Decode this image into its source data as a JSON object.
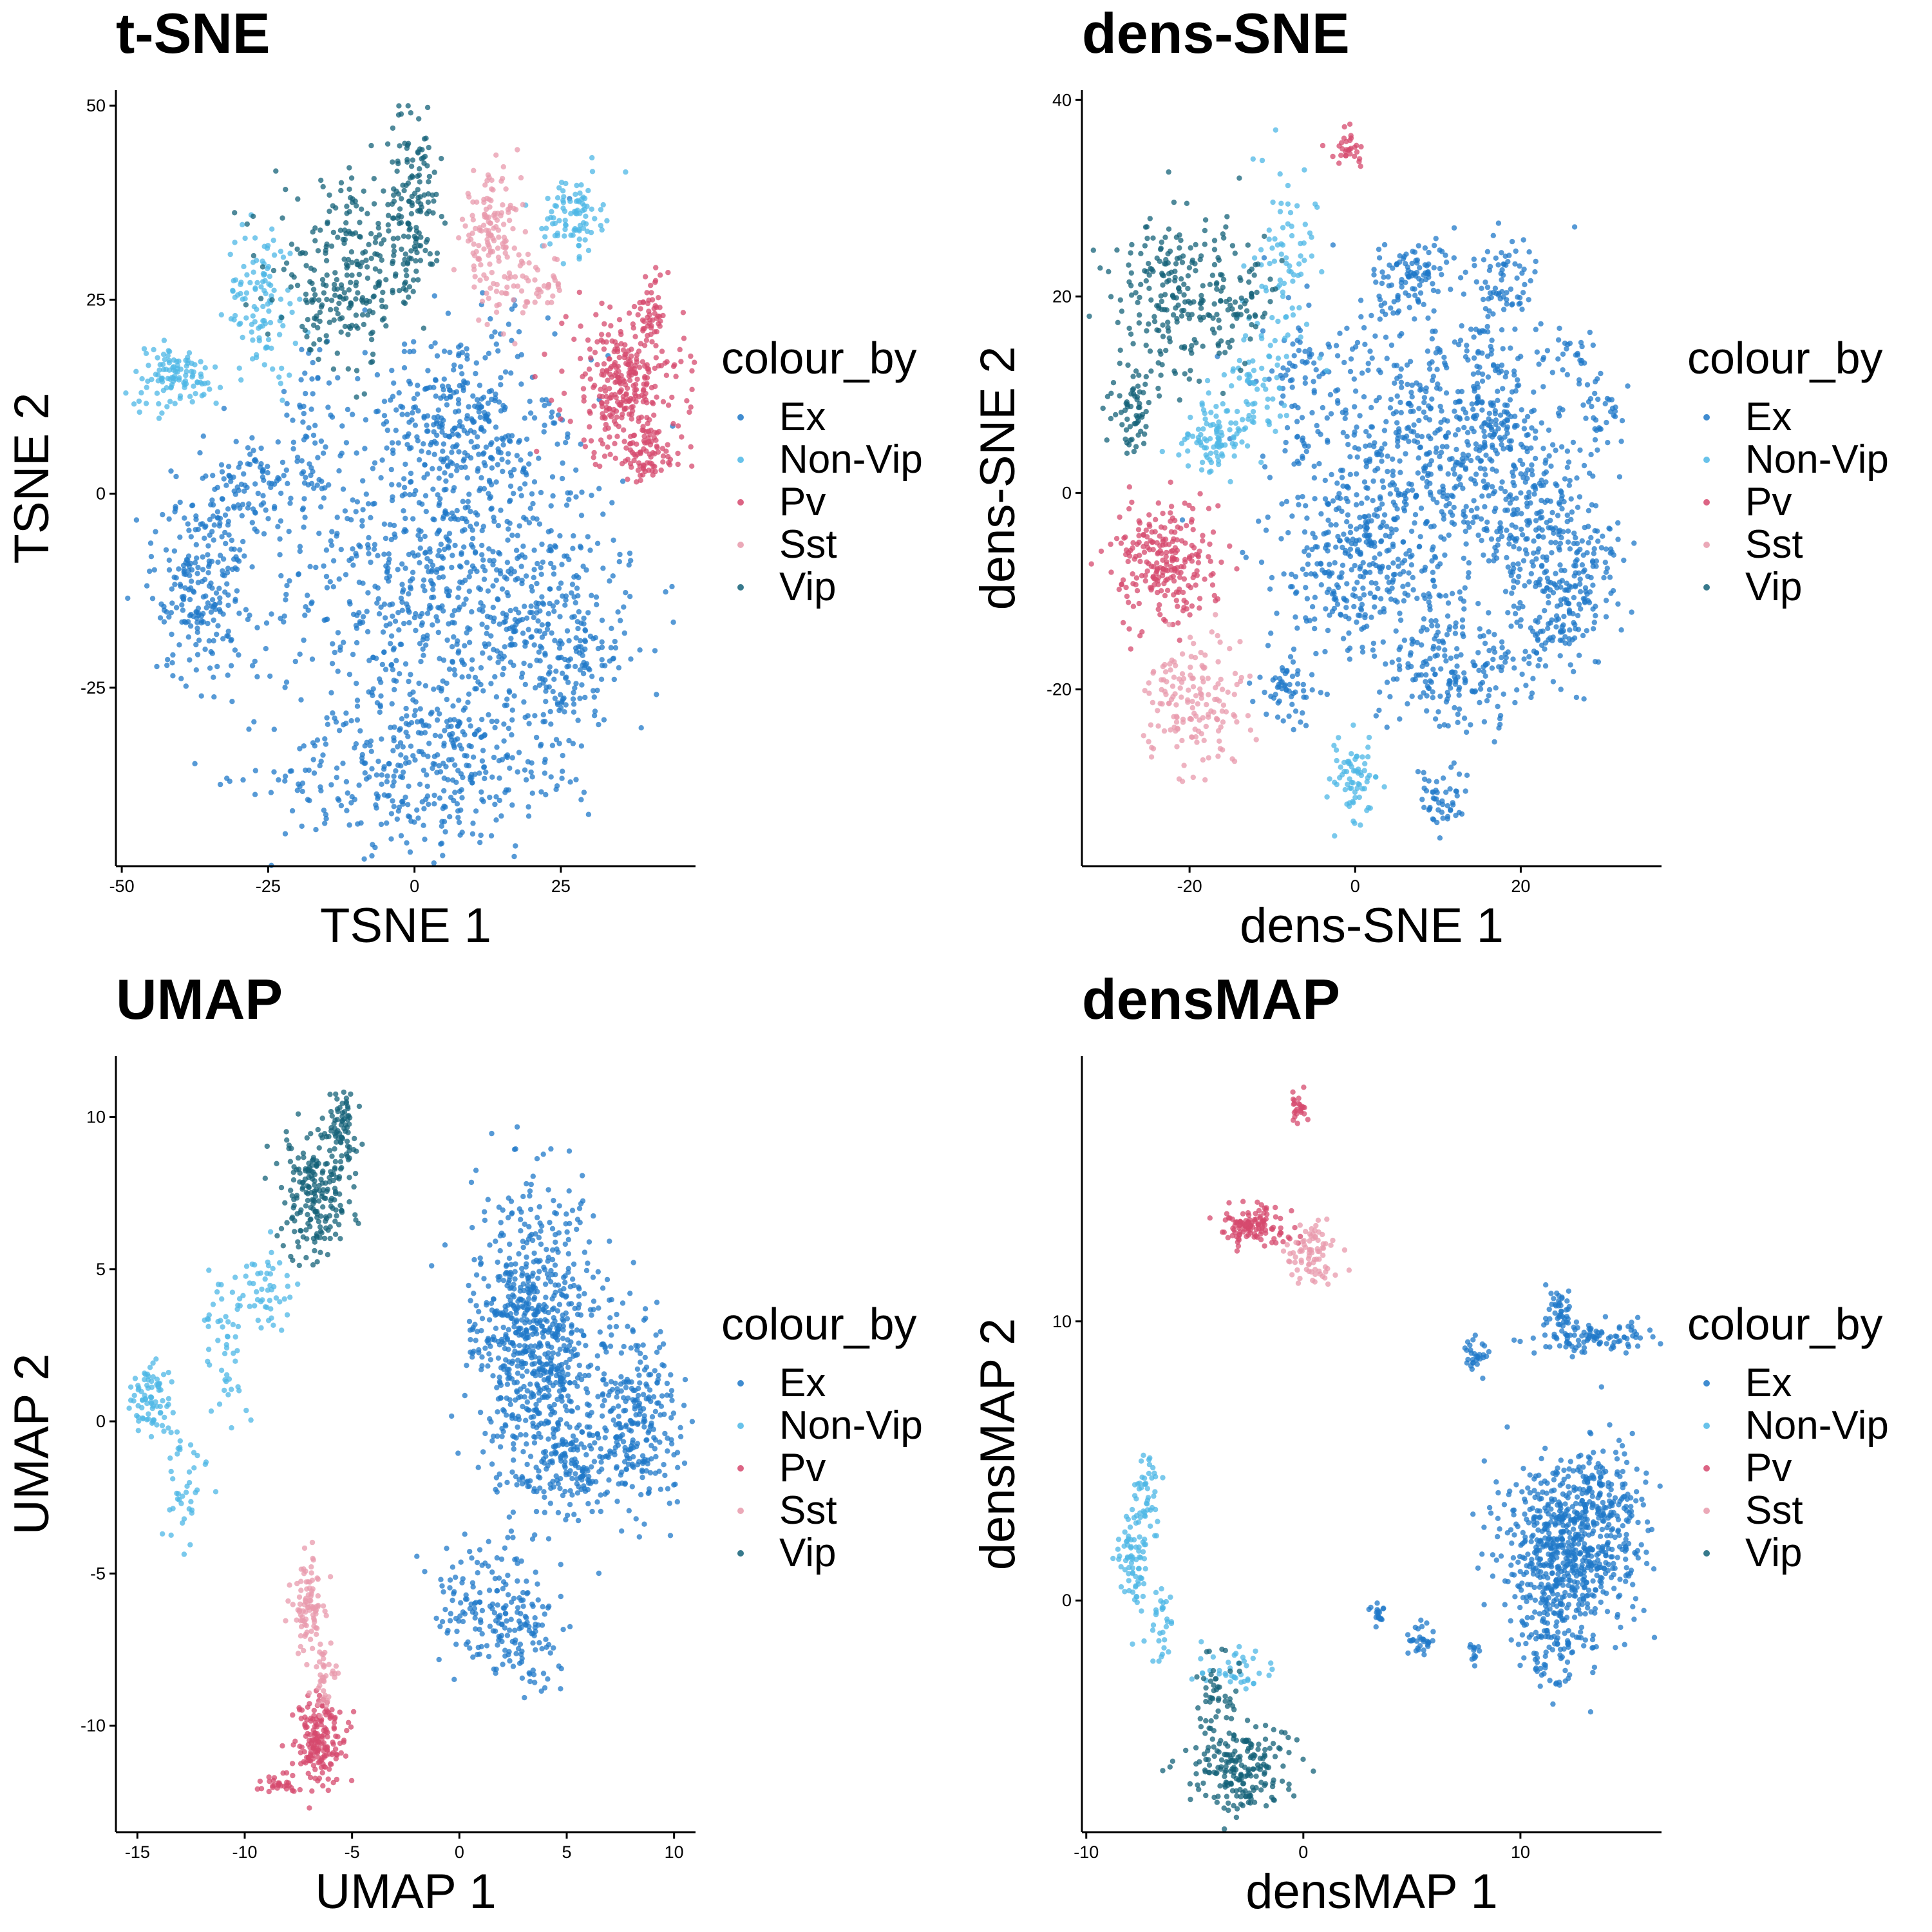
{
  "chart_data": [
    {
      "type": "scatter",
      "title": "t-SNE",
      "xlabel": "TSNE 1",
      "ylabel": "TSNE 2",
      "xlim": [
        -51,
        48
      ],
      "ylim": [
        -48,
        52
      ],
      "xticks": [
        -50,
        -25,
        0,
        25
      ],
      "yticks": [
        -25,
        0,
        25,
        50
      ],
      "xtick_labels": [
        "-50",
        "-25",
        "0",
        "25"
      ],
      "ytick_labels": [
        "-25",
        "0",
        "25",
        "50"
      ],
      "grid": false,
      "legend": {
        "title": "colour_by",
        "position": "right",
        "entries": [
          "Ex",
          "Non-Vip",
          "Pv",
          "Sst",
          "Vip"
        ]
      },
      "series": [
        {
          "name": "Ex",
          "color": "#1f78c8",
          "clusters": [
            {
              "cx": 5,
              "cy": -10,
              "sx": 13,
              "sy": 14,
              "n": 900
            },
            {
              "cx": 0,
              "cy": -36,
              "sx": 12,
              "sy": 5,
              "n": 300
            },
            {
              "cx": 25,
              "cy": -20,
              "sx": 6,
              "sy": 8,
              "n": 250
            },
            {
              "cx": 8,
              "cy": 10,
              "sx": 6,
              "sy": 6,
              "n": 200
            },
            {
              "cx": -37,
              "cy": -12,
              "sx": 4,
              "sy": 6,
              "n": 220
            },
            {
              "cx": -28,
              "cy": 0,
              "sx": 4,
              "sy": 4,
              "n": 110
            },
            {
              "cx": -18,
              "cy": 8,
              "sx": 2,
              "sy": 6,
              "n": 50
            }
          ]
        },
        {
          "name": "Non-Vip",
          "color": "#4eb7e6",
          "clusters": [
            {
              "cx": -41,
              "cy": 15,
              "sx": 4,
              "sy": 2,
              "n": 110
            },
            {
              "cx": -26,
              "cy": 25,
              "sx": 3,
              "sy": 5,
              "n": 110
            },
            {
              "cx": 27,
              "cy": 36,
              "sx": 2.5,
              "sy": 2.5,
              "n": 90
            }
          ]
        },
        {
          "name": "Pv",
          "color": "#d6496e",
          "clusters": [
            {
              "cx": 36,
              "cy": 14,
              "sx": 5,
              "sy": 5,
              "n": 320
            },
            {
              "cx": 40,
              "cy": 5,
              "sx": 3,
              "sy": 2,
              "n": 70
            },
            {
              "cx": 41,
              "cy": 24,
              "sx": 1.2,
              "sy": 2,
              "n": 30
            }
          ]
        },
        {
          "name": "Sst",
          "color": "#e89aac",
          "clusters": [
            {
              "cx": 13,
              "cy": 33,
              "sx": 2.5,
              "sy": 4,
              "n": 140
            },
            {
              "cx": 20,
              "cy": 27,
              "sx": 3,
              "sy": 2,
              "n": 50
            }
          ]
        },
        {
          "name": "Vip",
          "color": "#146178",
          "clusters": [
            {
              "cx": -10,
              "cy": 30,
              "sx": 7,
              "sy": 5,
              "n": 220
            },
            {
              "cx": 0,
              "cy": 38,
              "sx": 2,
              "sy": 6,
              "n": 120
            },
            {
              "cx": -14,
              "cy": 23,
              "sx": 4,
              "sy": 3,
              "n": 60
            }
          ]
        }
      ]
    },
    {
      "type": "scatter",
      "title": "dens-SNE",
      "xlabel": "dens-SNE 1",
      "ylabel": "dens-SNE 2",
      "xlim": [
        -33,
        37
      ],
      "ylim": [
        -38,
        41
      ],
      "xticks": [
        -20,
        0,
        20
      ],
      "yticks": [
        -20,
        0,
        20,
        40
      ],
      "xtick_labels": [
        "-20",
        "0",
        "20"
      ],
      "ytick_labels": [
        "-20",
        "0",
        "20",
        "40"
      ],
      "grid": false,
      "legend": {
        "title": "colour_by",
        "position": "right",
        "entries": [
          "Ex",
          "Non-Vip",
          "Pv",
          "Sst",
          "Vip"
        ]
      },
      "series": [
        {
          "name": "Ex",
          "color": "#1f78c8",
          "clusters": [
            {
              "cx": 8,
              "cy": 3,
              "sx": 9,
              "sy": 8,
              "n": 700
            },
            {
              "cx": 22,
              "cy": -3,
              "sx": 4,
              "sy": 5,
              "n": 220
            },
            {
              "cx": 0,
              "cy": -8,
              "sx": 4,
              "sy": 4,
              "n": 220
            },
            {
              "cx": 12,
              "cy": -18,
              "sx": 5,
              "sy": 3,
              "n": 200
            },
            {
              "cx": 25,
              "cy": -13,
              "sx": 2.5,
              "sy": 3,
              "n": 90
            },
            {
              "cx": 28,
              "cy": -8,
              "sx": 2,
              "sy": 3,
              "n": 70
            },
            {
              "cx": 7,
              "cy": 22,
              "sx": 2.5,
              "sy": 2,
              "n": 100
            },
            {
              "cx": 18,
              "cy": 21,
              "sx": 2,
              "sy": 3,
              "n": 80
            },
            {
              "cx": -7,
              "cy": 13,
              "sx": 2,
              "sy": 3,
              "n": 50
            },
            {
              "cx": -8,
              "cy": -20,
              "sx": 2,
              "sy": 2,
              "n": 60
            },
            {
              "cx": 10,
              "cy": -31,
              "sx": 1.5,
              "sy": 1.5,
              "n": 50
            },
            {
              "cx": 30,
              "cy": 8,
              "sx": 1.5,
              "sy": 2,
              "n": 30
            },
            {
              "cx": 26,
              "cy": 14,
              "sx": 1.2,
              "sy": 1.2,
              "n": 20
            },
            {
              "cx": 16,
              "cy": 8,
              "sx": 3,
              "sy": 3,
              "n": 80
            }
          ]
        },
        {
          "name": "Non-Vip",
          "color": "#4eb7e6",
          "clusters": [
            {
              "cx": -17,
              "cy": 5,
              "sx": 2,
              "sy": 2,
              "n": 90
            },
            {
              "cx": -12,
              "cy": 12,
              "sx": 2,
              "sy": 4,
              "n": 70
            },
            {
              "cx": -8,
              "cy": 24,
              "sx": 2,
              "sy": 5,
              "n": 70
            },
            {
              "cx": 0,
              "cy": -29,
              "sx": 1.6,
              "sy": 2,
              "n": 70
            }
          ]
        },
        {
          "name": "Pv",
          "color": "#d6496e",
          "clusters": [
            {
              "cx": -23,
              "cy": -7,
              "sx": 3,
              "sy": 3,
              "n": 240
            },
            {
              "cx": -1,
              "cy": 35,
              "sx": 1.2,
              "sy": 1,
              "n": 30
            }
          ]
        },
        {
          "name": "Sst",
          "color": "#e89aac",
          "clusters": [
            {
              "cx": -19,
              "cy": -21,
              "sx": 3,
              "sy": 3,
              "n": 160
            }
          ]
        },
        {
          "name": "Vip",
          "color": "#146178",
          "clusters": [
            {
              "cx": -22,
              "cy": 20,
              "sx": 4,
              "sy": 4,
              "n": 210
            },
            {
              "cx": -27,
              "cy": 8,
              "sx": 1.5,
              "sy": 2,
              "n": 60
            },
            {
              "cx": -14,
              "cy": 20,
              "sx": 3,
              "sy": 3,
              "n": 60
            }
          ]
        }
      ]
    },
    {
      "type": "scatter",
      "title": "UMAP",
      "xlabel": "UMAP 1",
      "ylabel": "UMAP 2",
      "xlim": [
        -16,
        11
      ],
      "ylim": [
        -13.5,
        12
      ],
      "xticks": [
        -15,
        -10,
        -5,
        0,
        5,
        10
      ],
      "yticks": [
        -10,
        -5,
        0,
        5,
        10
      ],
      "xtick_labels": [
        "-15",
        "-10",
        "-5",
        "0",
        "5",
        "10"
      ],
      "ytick_labels": [
        "-10",
        "-5",
        "0",
        "5",
        "10"
      ],
      "grid": false,
      "legend": {
        "title": "colour_by",
        "position": "right",
        "entries": [
          "Ex",
          "Non-Vip",
          "Pv",
          "Sst",
          "Vip"
        ]
      },
      "series": [
        {
          "name": "Ex",
          "color": "#1f78c8",
          "clusters": [
            {
              "cx": 3.5,
              "cy": 2.5,
              "sx": 1.4,
              "sy": 2.5,
              "n": 800
            },
            {
              "cx": 8.2,
              "cy": 0,
              "sx": 1,
              "sy": 1.5,
              "n": 260
            },
            {
              "cx": 5.5,
              "cy": -1.5,
              "sx": 0.8,
              "sy": 1,
              "n": 120
            },
            {
              "cx": 1.5,
              "cy": -6,
              "sx": 1.3,
              "sy": 1,
              "n": 160
            },
            {
              "cx": 3.2,
              "cy": -7.5,
              "sx": 0.8,
              "sy": 0.8,
              "n": 60
            }
          ]
        },
        {
          "name": "Non-Vip",
          "color": "#4eb7e6",
          "clusters": [
            {
              "cx": -14.3,
              "cy": 0.7,
              "sx": 0.5,
              "sy": 0.6,
              "n": 80
            },
            {
              "cx": -12.8,
              "cy": -2.3,
              "sx": 0.5,
              "sy": 0.9,
              "n": 40
            },
            {
              "cx": -11,
              "cy": 2.5,
              "sx": 0.6,
              "sy": 1.2,
              "n": 50
            },
            {
              "cx": -9,
              "cy": 4.3,
              "sx": 0.6,
              "sy": 0.8,
              "n": 50
            }
          ]
        },
        {
          "name": "Pv",
          "color": "#d6496e",
          "clusters": [
            {
              "cx": -6.5,
              "cy": -10.5,
              "sx": 0.6,
              "sy": 0.7,
              "n": 180
            },
            {
              "cx": -8.5,
              "cy": -12,
              "sx": 0.6,
              "sy": 0.2,
              "n": 30
            }
          ]
        },
        {
          "name": "Sst",
          "color": "#e89aac",
          "clusters": [
            {
              "cx": -7,
              "cy": -6,
              "sx": 0.4,
              "sy": 0.8,
              "n": 90
            },
            {
              "cx": -6.3,
              "cy": -8.3,
              "sx": 0.3,
              "sy": 0.6,
              "n": 40
            }
          ]
        },
        {
          "name": "Vip",
          "color": "#146178",
          "clusters": [
            {
              "cx": -6.7,
              "cy": 7.5,
              "sx": 0.8,
              "sy": 1,
              "n": 200
            },
            {
              "cx": -5.5,
              "cy": 9.7,
              "sx": 0.4,
              "sy": 0.6,
              "n": 70
            }
          ]
        }
      ]
    },
    {
      "type": "scatter",
      "title": "densMAP",
      "xlabel": "densMAP 1",
      "ylabel": "densMAP 2",
      "xlim": [
        -10.2,
        16.5
      ],
      "ylim": [
        -8.3,
        19.5
      ],
      "xticks": [
        -10,
        0,
        10
      ],
      "yticks": [
        0,
        10
      ],
      "xtick_labels": [
        "-10",
        "0",
        "10"
      ],
      "ytick_labels": [
        "0",
        "10"
      ],
      "grid": false,
      "legend": {
        "title": "colour_by",
        "position": "right",
        "entries": [
          "Ex",
          "Non-Vip",
          "Pv",
          "Sst",
          "Vip"
        ]
      },
      "series": [
        {
          "name": "Ex",
          "color": "#1f78c8",
          "clusters": [
            {
              "cx": 12.2,
              "cy": 1.8,
              "sx": 1.6,
              "sy": 1.5,
              "n": 650
            },
            {
              "cx": 13.5,
              "cy": 4,
              "sx": 1,
              "sy": 1,
              "n": 120
            },
            {
              "cx": 11.5,
              "cy": -1.5,
              "sx": 0.8,
              "sy": 1,
              "n": 100
            },
            {
              "cx": 13.5,
              "cy": 9.4,
              "sx": 1.4,
              "sy": 0.3,
              "n": 100
            },
            {
              "cx": 11.8,
              "cy": 10.3,
              "sx": 0.3,
              "sy": 0.4,
              "n": 40
            },
            {
              "cx": 8,
              "cy": 8.8,
              "sx": 0.25,
              "sy": 0.3,
              "n": 30
            },
            {
              "cx": 3.5,
              "cy": -0.5,
              "sx": 0.2,
              "sy": 0.2,
              "n": 20
            },
            {
              "cx": 5.5,
              "cy": -1.5,
              "sx": 0.3,
              "sy": 0.3,
              "n": 30
            },
            {
              "cx": 7.8,
              "cy": -1.9,
              "sx": 0.15,
              "sy": 0.2,
              "n": 12
            }
          ]
        },
        {
          "name": "Non-Vip",
          "color": "#4eb7e6",
          "clusters": [
            {
              "cx": -7.8,
              "cy": 1.5,
              "sx": 0.4,
              "sy": 0.9,
              "n": 80
            },
            {
              "cx": -7.2,
              "cy": 3.8,
              "sx": 0.3,
              "sy": 0.7,
              "n": 40
            },
            {
              "cx": -6.5,
              "cy": -0.8,
              "sx": 0.3,
              "sy": 0.7,
              "n": 30
            },
            {
              "cx": -3,
              "cy": -2.5,
              "sx": 0.8,
              "sy": 0.5,
              "n": 40
            }
          ]
        },
        {
          "name": "Pv",
          "color": "#d6496e",
          "clusters": [
            {
              "cx": -2.3,
              "cy": 13.4,
              "sx": 0.7,
              "sy": 0.4,
              "n": 120
            },
            {
              "cx": -0.2,
              "cy": 17.7,
              "sx": 0.2,
              "sy": 0.3,
              "n": 25
            }
          ]
        },
        {
          "name": "Sst",
          "color": "#e89aac",
          "clusters": [
            {
              "cx": 0.3,
              "cy": 12.5,
              "sx": 0.6,
              "sy": 0.6,
              "n": 80
            }
          ]
        },
        {
          "name": "Vip",
          "color": "#146178",
          "clusters": [
            {
              "cx": -3,
              "cy": -6,
              "sx": 1.1,
              "sy": 0.8,
              "n": 200
            },
            {
              "cx": -4,
              "cy": -3.5,
              "sx": 0.6,
              "sy": 0.8,
              "n": 50
            }
          ]
        }
      ]
    }
  ]
}
